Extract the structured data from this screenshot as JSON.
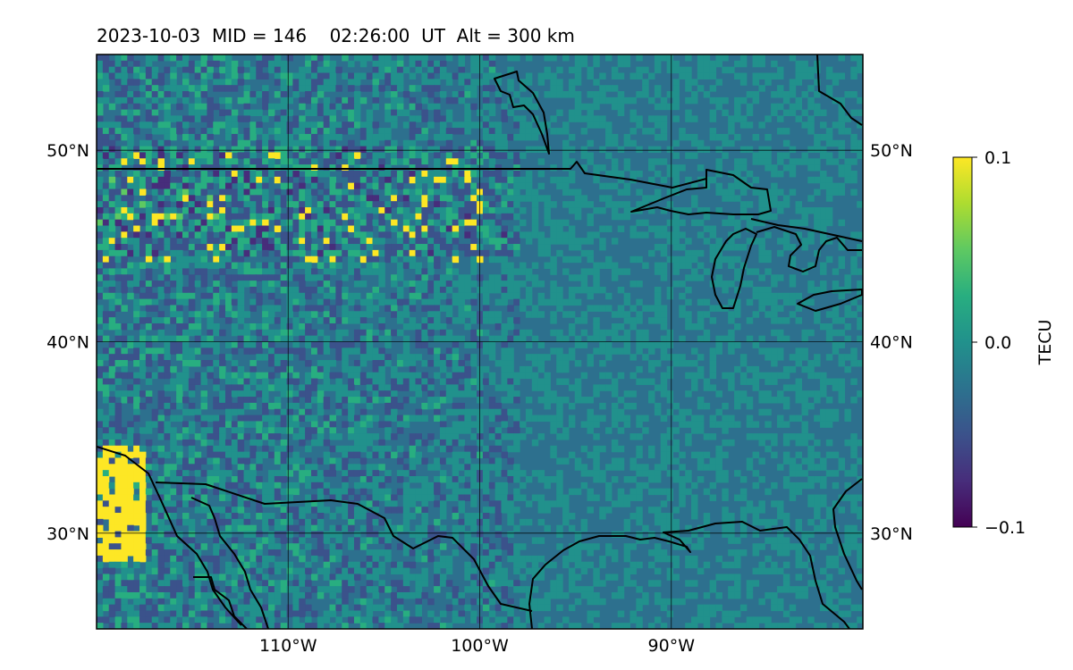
{
  "title": "2023-10-03  MID = 146    02:26:00  UT  Alt = 300 km",
  "map": {
    "lon_range": [
      -120,
      -80
    ],
    "lat_range": [
      25,
      55
    ],
    "lon_ticks": [
      {
        "value": -110,
        "label": "110°W"
      },
      {
        "value": -100,
        "label": "100°W"
      },
      {
        "value": -90,
        "label": "90°W"
      }
    ],
    "lat_ticks": [
      {
        "value": 50,
        "label": "50°N"
      },
      {
        "value": 40,
        "label": "40°N"
      },
      {
        "value": 30,
        "label": "30°N"
      }
    ],
    "grid": true,
    "background_color": "#2d708e",
    "coastline_color": "#000000"
  },
  "colorbar": {
    "label": "TECU",
    "colormap": "viridis",
    "min": -0.1,
    "max": 0.1,
    "ticks": [
      {
        "value": 0.1,
        "label": "0.1"
      },
      {
        "value": 0.0,
        "label": "0.0"
      },
      {
        "value": -0.1,
        "label": "−0.1"
      }
    ]
  }
}
